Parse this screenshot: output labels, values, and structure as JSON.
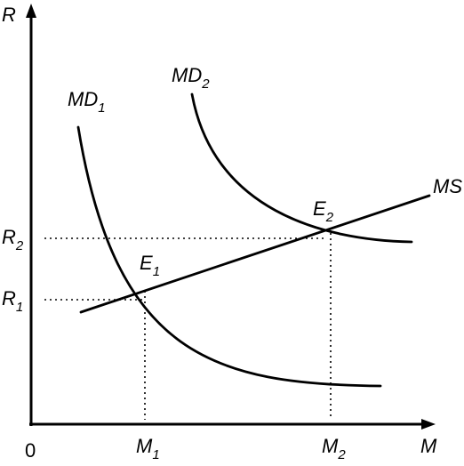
{
  "axes": {
    "y_label": "R",
    "x_label": "M",
    "origin": "0"
  },
  "curves": {
    "md1": {
      "base": "MD",
      "sub": "1"
    },
    "md2": {
      "base": "MD",
      "sub": "2"
    },
    "ms": {
      "label": "MS"
    }
  },
  "points": {
    "e1": {
      "base": "E",
      "sub": "1"
    },
    "e2": {
      "base": "E",
      "sub": "2"
    }
  },
  "ticks": {
    "r1": {
      "base": "R",
      "sub": "1"
    },
    "r2": {
      "base": "R",
      "sub": "2"
    },
    "m1": {
      "base": "M",
      "sub": "1"
    },
    "m2": {
      "base": "M",
      "sub": "2"
    }
  },
  "colors": {
    "ink": "#000000",
    "background": "#ffffff"
  }
}
